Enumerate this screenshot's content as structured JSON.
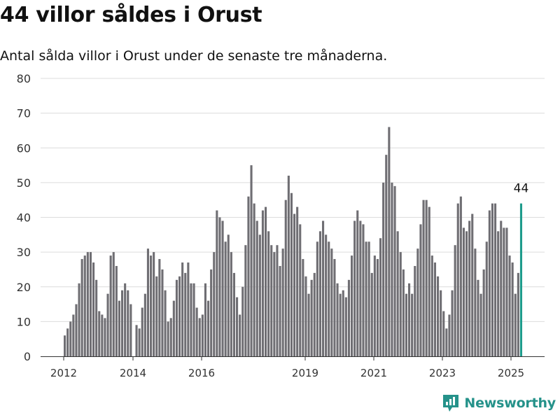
{
  "header": {
    "title": "44 villor såldes i Orust",
    "subtitle": "Antal sålda villor i Orust under de senaste tre månaderna."
  },
  "brand": {
    "name": "Newsworthy",
    "icon": "newsworthy-logo-icon",
    "color": "#25928a"
  },
  "colors": {
    "bar": "#6f6e73",
    "highlight": "#1f9c8c",
    "grid": "#dcdcdc",
    "axis": "#333333"
  },
  "chart_data": {
    "type": "bar",
    "title": "44 villor såldes i Orust",
    "subtitle": "Antal sålda villor i Orust under de senaste tre månaderna.",
    "xlabel": "",
    "ylabel": "",
    "ylim": [
      0,
      80
    ],
    "yticks": [
      0,
      10,
      20,
      30,
      40,
      50,
      60,
      70,
      80
    ],
    "xticks": [
      "2012",
      "2014",
      "2016",
      "2019",
      "2021",
      "2023",
      "2025"
    ],
    "grid": true,
    "legend": "none",
    "highlight": {
      "label": "44",
      "value": 44
    },
    "series": [
      {
        "name": "",
        "values": [
          6,
          8,
          10,
          12,
          15,
          21,
          28,
          29,
          30,
          30,
          27,
          22,
          13,
          12,
          11,
          18,
          29,
          30,
          26,
          16,
          19,
          21,
          19,
          15,
          0,
          9,
          8,
          14,
          18,
          31,
          29,
          30,
          23,
          28,
          25,
          19,
          10,
          11,
          16,
          22,
          23,
          27,
          24,
          27,
          21,
          21,
          14,
          11,
          12,
          21,
          16,
          25,
          30,
          42,
          40,
          39,
          33,
          35,
          30,
          24,
          17,
          12,
          20,
          32,
          46,
          55,
          44,
          39,
          35,
          42,
          43,
          36,
          32,
          30,
          32,
          26,
          31,
          45,
          52,
          47,
          41,
          43,
          38,
          28,
          23,
          18,
          22,
          24,
          33,
          36,
          39,
          35,
          33,
          31,
          28,
          21,
          18,
          19,
          17,
          22,
          29,
          39,
          42,
          39,
          38,
          33,
          33,
          24,
          29,
          28,
          34,
          50,
          58,
          66,
          50,
          49,
          36,
          30,
          25,
          18,
          21,
          18,
          26,
          31,
          38,
          45,
          45,
          43,
          29,
          27,
          23,
          19,
          13,
          8,
          12,
          19,
          32,
          44,
          46,
          37,
          36,
          39,
          41,
          31,
          22,
          18,
          25,
          33,
          42,
          44,
          44,
          36,
          39,
          37,
          37,
          29,
          27,
          18,
          24,
          44
        ]
      }
    ]
  }
}
